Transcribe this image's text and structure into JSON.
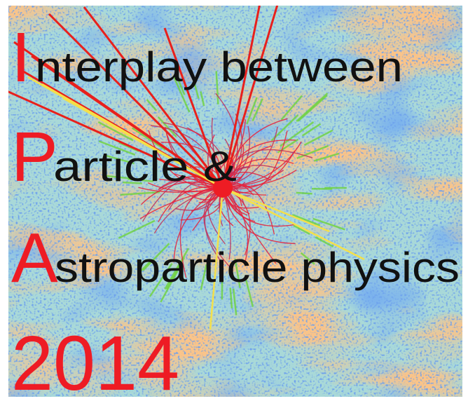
{
  "lines": [
    {
      "initial": "I",
      "rest": "nterplay between"
    },
    {
      "initial": "P",
      "rest": "article &"
    },
    {
      "initial": "A",
      "rest": "stroparticle physics"
    }
  ],
  "year": "2014"
}
